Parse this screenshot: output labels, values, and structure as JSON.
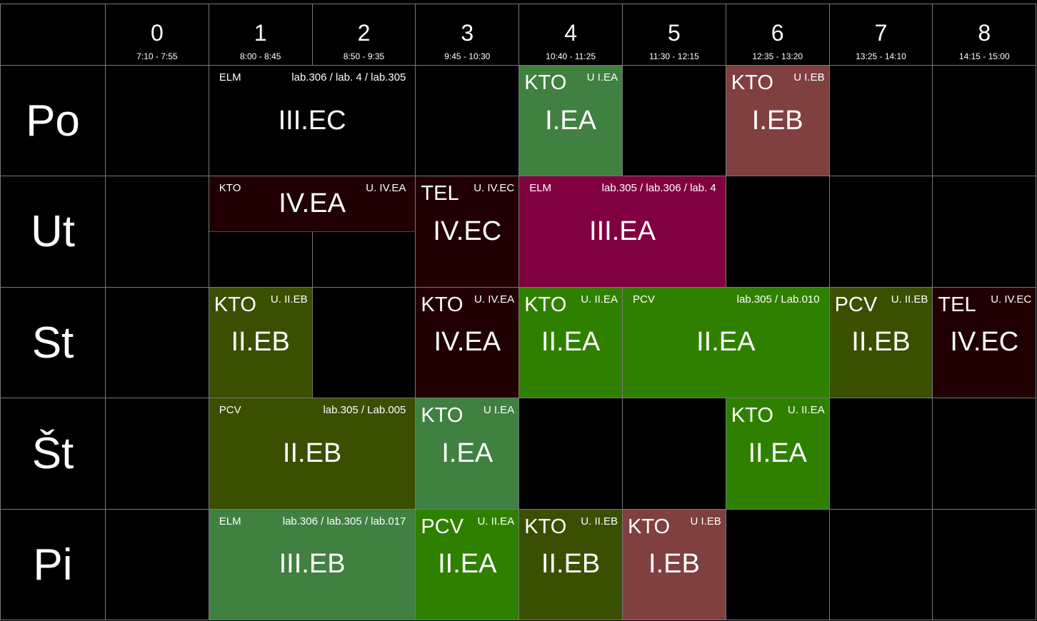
{
  "periods": [
    {
      "number": 0,
      "time": "7:10 - 7:55"
    },
    {
      "number": 1,
      "time": "8:00 - 8:45"
    },
    {
      "number": 2,
      "time": "8:50 - 9:35"
    },
    {
      "number": 3,
      "time": "9:45 - 10:30"
    },
    {
      "number": 4,
      "time": "10:40 - 11:25"
    },
    {
      "number": 5,
      "time": "11:30 - 12:15"
    },
    {
      "number": 6,
      "time": "12:35 - 13:20"
    },
    {
      "number": 7,
      "time": "13:25 - 14:10"
    },
    {
      "number": 8,
      "time": "14:15 - 15:00"
    }
  ],
  "days": [
    {
      "name": "Po",
      "lessons": [
        {
          "start": 1,
          "end": 2,
          "subject": "ELM",
          "room": "lab.306 / lab. 4 / lab.305",
          "class": "III.EC",
          "color": "#000000"
        },
        {
          "start": 4,
          "end": 4,
          "subject": "KTO",
          "room": "U I.EA",
          "class": "I.EA",
          "color": "#408040"
        },
        {
          "start": 6,
          "end": 6,
          "subject": "KTO",
          "room": "U I.EB",
          "class": "I.EB",
          "color": "#804040"
        }
      ]
    },
    {
      "name": "Ut",
      "lessons": [
        {
          "start": 1,
          "end": 2,
          "subject": "KTO",
          "room": "U. IV.EA",
          "class": "IV.EA",
          "color": "#200000",
          "split": true
        },
        {
          "start": 3,
          "end": 3,
          "subject": "TEL",
          "room": "U. IV.EC",
          "class": "IV.EC",
          "color": "#200000"
        },
        {
          "start": 4,
          "end": 5,
          "subject": "ELM",
          "room": "lab.305 / lab.306 / lab. 4",
          "class": "III.EA",
          "color": "#800040"
        }
      ]
    },
    {
      "name": "St",
      "lessons": [
        {
          "start": 1,
          "end": 1,
          "subject": "KTO",
          "room": "U. II.EB",
          "class": "II.EB",
          "color": "#385000"
        },
        {
          "start": 3,
          "end": 3,
          "subject": "KTO",
          "room": "U. IV.EA",
          "class": "IV.EA",
          "color": "#200000"
        },
        {
          "start": 4,
          "end": 4,
          "subject": "KTO",
          "room": "U. II.EA",
          "class": "II.EA",
          "color": "#308000"
        },
        {
          "start": 5,
          "end": 6,
          "subject": "PCV",
          "room": "lab.305 / Lab.010",
          "class": "II.EA",
          "color": "#308000"
        },
        {
          "start": 7,
          "end": 7,
          "subject": "PCV",
          "room": "U. II.EB",
          "class": "II.EB",
          "color": "#385000"
        },
        {
          "start": 8,
          "end": 8,
          "subject": "TEL",
          "room": "U. IV.EC",
          "class": "IV.EC",
          "color": "#200000"
        }
      ]
    },
    {
      "name": "Št",
      "lessons": [
        {
          "start": 1,
          "end": 2,
          "subject": "PCV",
          "room": "lab.305 / Lab.005",
          "class": "II.EB",
          "color": "#385000"
        },
        {
          "start": 3,
          "end": 3,
          "subject": "KTO",
          "room": "U I.EA",
          "class": "I.EA",
          "color": "#408040"
        },
        {
          "start": 6,
          "end": 6,
          "subject": "KTO",
          "room": "U. II.EA",
          "class": "II.EA",
          "color": "#308000"
        }
      ]
    },
    {
      "name": "Pi",
      "lessons": [
        {
          "start": 1,
          "end": 2,
          "subject": "ELM",
          "room": "lab.306 / lab.305 / lab.017",
          "class": "III.EB",
          "color": "#408040"
        },
        {
          "start": 3,
          "end": 3,
          "subject": "PCV",
          "room": "U. II.EA",
          "class": "II.EA",
          "color": "#308000"
        },
        {
          "start": 4,
          "end": 4,
          "subject": "KTO",
          "room": "U. II.EB",
          "class": "II.EB",
          "color": "#385000"
        },
        {
          "start": 5,
          "end": 5,
          "subject": "KTO",
          "room": "U I.EB",
          "class": "I.EB",
          "color": "#804040"
        }
      ]
    }
  ]
}
